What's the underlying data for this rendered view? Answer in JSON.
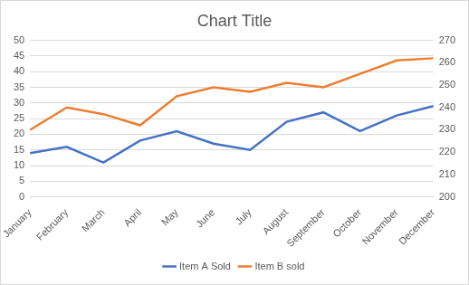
{
  "chart_data": {
    "type": "line",
    "title": "Chart Title",
    "categories": [
      "January",
      "February",
      "March",
      "April",
      "May",
      "June",
      "July",
      "August",
      "September",
      "October",
      "November",
      "December"
    ],
    "series": [
      {
        "name": "Item A Sold",
        "color": "#4472c4",
        "values": [
          14,
          16,
          11,
          18,
          21,
          17,
          15,
          24,
          27,
          21,
          26,
          29
        ]
      },
      {
        "name": "Item B sold",
        "color": "#ed7d31",
        "axis": "y2",
        "values": [
          230,
          240,
          237,
          232,
          245,
          249,
          247,
          251,
          249,
          255,
          261,
          262
        ]
      }
    ],
    "ylim": [
      0,
      50
    ],
    "yticks": [
      0,
      5,
      10,
      15,
      20,
      25,
      30,
      35,
      40,
      45,
      50
    ],
    "y2lim": [
      200,
      270
    ],
    "y2ticks": [
      200,
      210,
      220,
      230,
      240,
      250,
      260,
      270
    ],
    "grid": true,
    "legend": "bottom"
  }
}
